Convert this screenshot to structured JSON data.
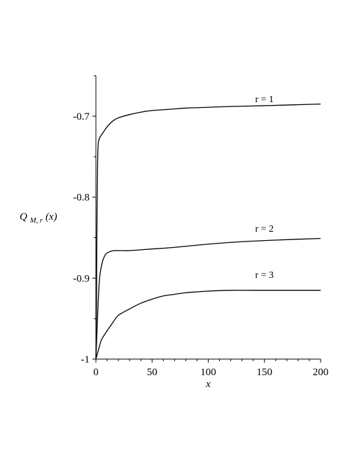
{
  "chart_data": {
    "type": "line",
    "title": "",
    "xlabel": "x",
    "ylabel": {
      "main": "Q",
      "subscript": "M, r",
      "arg": "(x)"
    },
    "xlim": [
      0,
      200
    ],
    "ylim": [
      -1,
      -0.65
    ],
    "xticks": [
      0,
      50,
      100,
      150,
      200
    ],
    "xtick_labels": [
      "0",
      "50",
      "100",
      "150",
      "200"
    ],
    "yticks": [
      -1,
      -0.9,
      -0.8,
      -0.7
    ],
    "ytick_labels": [
      "-1",
      "-0.9",
      "-0.8",
      "-0.7"
    ],
    "grid": false,
    "legend": "none",
    "series": [
      {
        "name": "r = 1",
        "label_at": [
          150,
          -0.688
        ],
        "x": [
          0,
          0.5,
          1,
          1.5,
          2,
          3,
          4,
          5,
          7,
          10,
          15,
          20,
          30,
          40,
          50,
          60,
          80,
          100,
          120,
          150,
          175,
          200
        ],
        "y": [
          -1,
          -0.93,
          -0.82,
          -0.76,
          -0.735,
          -0.728,
          -0.725,
          -0.723,
          -0.719,
          -0.713,
          -0.706,
          -0.702,
          -0.698,
          -0.695,
          -0.693,
          -0.692,
          -0.69,
          -0.689,
          -0.688,
          -0.687,
          -0.686,
          -0.685
        ]
      },
      {
        "name": "r = 2",
        "label_at": [
          150,
          -0.848
        ],
        "x": [
          0,
          1,
          2,
          3,
          4,
          6,
          8,
          10,
          13,
          16,
          20,
          25,
          30,
          40,
          50,
          70,
          100,
          130,
          160,
          200
        ],
        "y": [
          -1,
          -0.965,
          -0.93,
          -0.905,
          -0.892,
          -0.879,
          -0.872,
          -0.869,
          -0.867,
          -0.866,
          -0.866,
          -0.866,
          -0.866,
          -0.865,
          -0.864,
          -0.862,
          -0.858,
          -0.855,
          -0.853,
          -0.851
        ]
      },
      {
        "name": "r = 3",
        "label_at": [
          150,
          -0.905
        ],
        "x": [
          0,
          1,
          3,
          5,
          10,
          15,
          20,
          30,
          40,
          50,
          60,
          70,
          80,
          90,
          100,
          120,
          140,
          160,
          180,
          200
        ],
        "y": [
          -1,
          -0.995,
          -0.985,
          -0.976,
          -0.965,
          -0.955,
          -0.946,
          -0.938,
          -0.931,
          -0.926,
          -0.922,
          -0.92,
          -0.918,
          -0.917,
          -0.916,
          -0.915,
          -0.915,
          -0.915,
          -0.915,
          -0.915
        ]
      }
    ]
  }
}
